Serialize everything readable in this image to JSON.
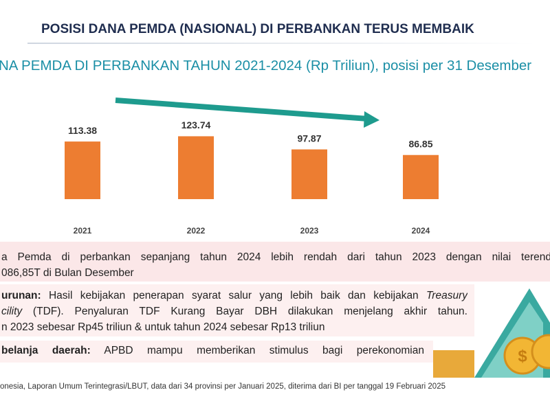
{
  "header": {
    "title": "POSISI DANA PEMDA (NASIONAL) DI PERBANKAN TERUS MEMBAIK"
  },
  "chart_data": {
    "type": "bar",
    "title": "NA PEMDA DI PERBANKAN TAHUN 2021-2024 (Rp Triliun), posisi per 31 Desember",
    "categories": [
      "2021",
      "2022",
      "2023",
      "2024"
    ],
    "values": [
      113.38,
      123.74,
      97.87,
      86.85
    ],
    "color": "#ed7d31"
  },
  "notes": [
    {
      "lines": [
        [
          {
            "text": "a Pemda di perbankan sepanjang tahun 2024 lebih rendah dari tahun 2023 dengan nilai terend",
            "style": "normal"
          }
        ],
        [
          {
            "text": "086,85T di Bulan Desember",
            "style": "normal"
          }
        ]
      ]
    },
    {
      "lines": [
        [
          {
            "text": "urunan:",
            "style": "bold"
          },
          {
            "text": " Hasil kebijakan penerapan syarat salur yang lebih baik dan kebijakan ",
            "style": "normal"
          },
          {
            "text": "Treasury",
            "style": "italic"
          }
        ],
        [
          {
            "text": "cility",
            "style": "italic"
          },
          {
            "text": " (TDF). Penyaluran TDF Kurang Bayar DBH dilakukan menjelang akhir tahun.",
            "style": "normal"
          }
        ],
        [
          {
            "text": "n 2023 sebesar Rp45 triliun & untuk tahun 2024 sebesar Rp13 triliun",
            "style": "normal"
          }
        ]
      ]
    },
    {
      "lines": [
        [
          {
            "text": "belanja daerah:",
            "style": "bold"
          },
          {
            "text": " APBD mampu memberikan stimulus bagi perekonomian",
            "style": "normal"
          }
        ]
      ]
    }
  ],
  "source": "onesia, Laporan Umum Terintegrasi/LBUT, data dari 34 provinsi per Januari 2025, diterima dari BI per tanggal 19 Februari 2025"
}
